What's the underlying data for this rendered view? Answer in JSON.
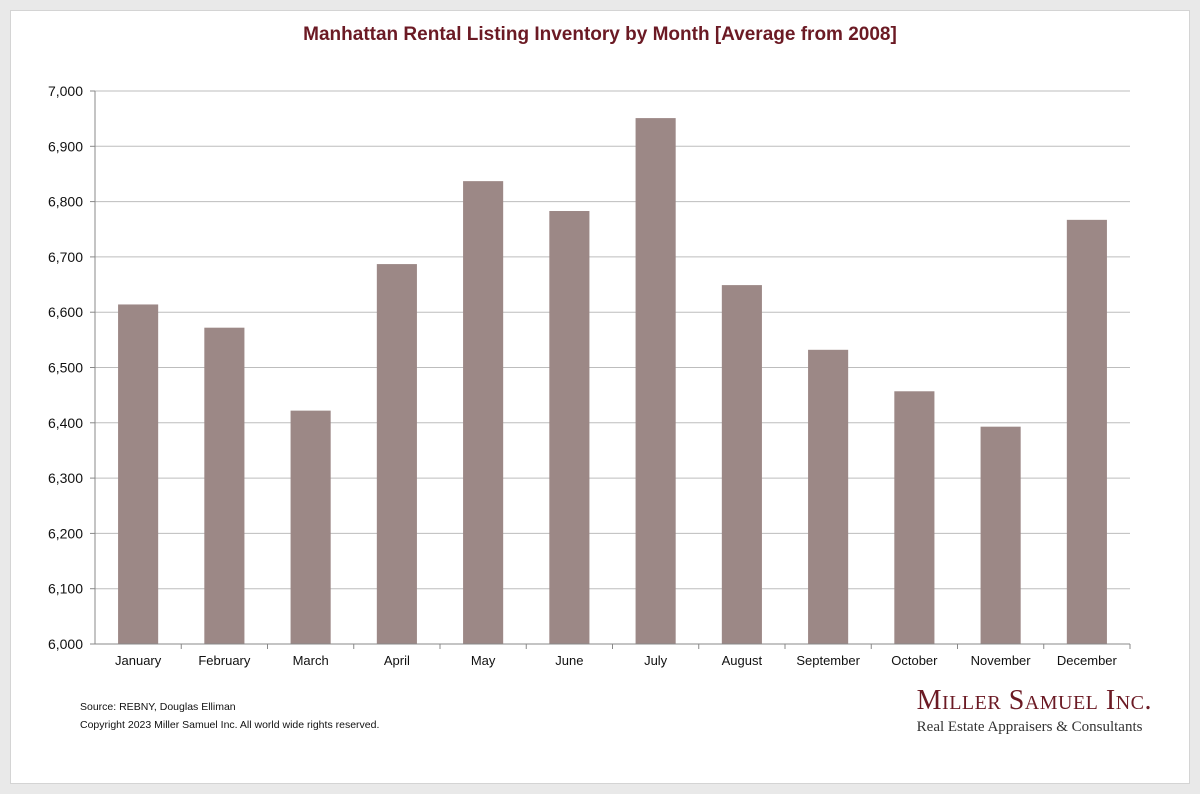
{
  "chart_data": {
    "type": "bar",
    "title": "Manhattan Rental Listing Inventory by Month [Average from 2008]",
    "categories": [
      "January",
      "February",
      "March",
      "April",
      "May",
      "June",
      "July",
      "August",
      "September",
      "October",
      "November",
      "December"
    ],
    "values": [
      6614,
      6572,
      6422,
      6687,
      6837,
      6783,
      6951,
      6649,
      6532,
      6457,
      6393,
      6767
    ],
    "ylim": [
      6000,
      7000
    ],
    "yticks": [
      6000,
      6100,
      6200,
      6300,
      6400,
      6500,
      6600,
      6700,
      6800,
      6900,
      7000
    ],
    "ytick_labels": [
      "6,000",
      "6,100",
      "6,200",
      "6,300",
      "6,400",
      "6,500",
      "6,600",
      "6,700",
      "6,800",
      "6,900",
      "7,000"
    ],
    "xlabel": "",
    "ylabel": "",
    "grid": true,
    "bar_color": "#9c8886",
    "title_color": "#6b1a24"
  },
  "footer": {
    "source": "Source: REBNY, Douglas Elliman",
    "copyright": "Copyright 2023 Miller Samuel Inc.  All world wide rights reserved."
  },
  "logo": {
    "name": "Miller Samuel Inc.",
    "tagline": "Real Estate Appraisers & Consultants",
    "color": "#6b1a24"
  }
}
